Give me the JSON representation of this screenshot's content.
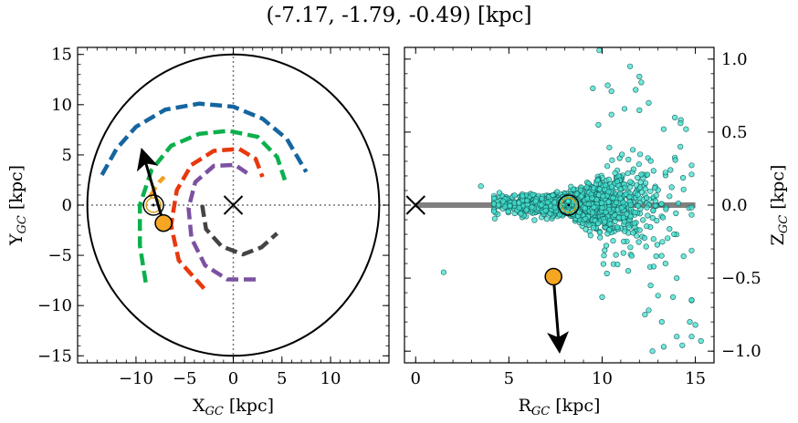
{
  "title": "(-7.17, -1.79, -0.49) [kpc]",
  "chart_data": [
    {
      "type": "scatter",
      "panel": "left",
      "xlabel": "X_GC [kpc]",
      "ylabel": "Y_GC [kpc]",
      "xlim": [
        -16,
        16
      ],
      "ylim": [
        -15.7,
        15.7
      ],
      "x_ticks": [
        -10,
        -5,
        0,
        5,
        10
      ],
      "y_ticks": [
        -15,
        -10,
        -5,
        0,
        5,
        10,
        15
      ],
      "x_tick_labels": [
        "−10",
        "−5",
        "0",
        "5",
        "10"
      ],
      "y_tick_labels": [
        "−15",
        "−10",
        "−5",
        "0",
        "5",
        "10",
        "15"
      ],
      "boundary_circle_radius": 15,
      "galactic_center": [
        0,
        0
      ],
      "sun": [
        -8.2,
        0
      ],
      "object": [
        -7.17,
        -1.79
      ],
      "velocity_arrow": {
        "from": [
          -7.17,
          -1.79
        ],
        "to": [
          -9.3,
          5.2
        ]
      },
      "spiral_arms": [
        {
          "color": "#1565a0",
          "points": [
            [
              -13.5,
              3
            ],
            [
              -12,
              5.6
            ],
            [
              -10,
              7.8
            ],
            [
              -7,
              9.5
            ],
            [
              -3.5,
              10.1
            ],
            [
              0,
              9.8
            ],
            [
              3,
              8.6
            ],
            [
              5.5,
              6.6
            ],
            [
              7.5,
              3.3
            ]
          ]
        },
        {
          "color": "#0bb04c",
          "points": [
            [
              -9,
              -7.7
            ],
            [
              -9.6,
              -4
            ],
            [
              -9.6,
              0
            ],
            [
              -8.4,
              3.5
            ],
            [
              -6.4,
              5.9
            ],
            [
              -3.5,
              7.1
            ],
            [
              -0.5,
              7.4
            ],
            [
              2.5,
              6.8
            ],
            [
              4.5,
              4.8
            ],
            [
              5.3,
              2.5
            ]
          ]
        },
        {
          "color": "#e8380d",
          "points": [
            [
              -3,
              -8.3
            ],
            [
              -5.6,
              -5.5
            ],
            [
              -6.4,
              -2
            ],
            [
              -5.8,
              1.5
            ],
            [
              -4.3,
              4
            ],
            [
              -2,
              5.4
            ],
            [
              0.6,
              5.6
            ],
            [
              2.3,
              4.6
            ],
            [
              3,
              2.8
            ]
          ]
        },
        {
          "color": "#7b52a1",
          "points": [
            [
              2.3,
              -7.4
            ],
            [
              -0.6,
              -7.4
            ],
            [
              -2.9,
              -6
            ],
            [
              -4.3,
              -3.3
            ],
            [
              -4.6,
              -0.3
            ],
            [
              -3.9,
              2.3
            ],
            [
              -2,
              3.9
            ],
            [
              0.2,
              4
            ],
            [
              1.7,
              3
            ]
          ]
        },
        {
          "color": "#444444",
          "points": [
            [
              -3.2,
              0
            ],
            [
              -2.8,
              -2.4
            ],
            [
              -1.2,
              -4.1
            ],
            [
              1,
              -4.9
            ],
            [
              2.9,
              -4.2
            ],
            [
              4.5,
              -2.8
            ]
          ]
        },
        {
          "color": "#f0a020",
          "points": [
            [
              -8.6,
              0.8
            ],
            [
              -8.1,
              1.6
            ],
            [
              -7.6,
              2.3
            ],
            [
              -7.1,
              2.8
            ]
          ]
        }
      ]
    },
    {
      "type": "scatter",
      "panel": "right",
      "xlabel": "R_GC [kpc]",
      "ylabel": "Z_GC [kpc]",
      "xlim": [
        -0.6,
        16
      ],
      "ylim": [
        -1.08,
        1.08
      ],
      "x_ticks": [
        0,
        5,
        10,
        15
      ],
      "y_ticks": [
        -1.0,
        -0.5,
        0.0,
        0.5,
        1.0
      ],
      "x_tick_labels": [
        "0",
        "5",
        "10",
        "15"
      ],
      "y_tick_labels": [
        "−1.0",
        "−0.5",
        "0.0",
        "0.5",
        "1.0"
      ],
      "y_axis_side": "right",
      "galactic_center": [
        0,
        0
      ],
      "sun": [
        8.2,
        0
      ],
      "object": [
        7.39,
        -0.49
      ],
      "velocity_arrow": {
        "from": [
          7.39,
          -0.49
        ],
        "to": [
          7.7,
          -0.98
        ]
      },
      "disk_line": {
        "x": [
          0,
          15
        ],
        "y": 0,
        "color": "#808080"
      },
      "point_color": "#40e0d0",
      "point_edge_color": "#1a5f5a",
      "n_points": 1700,
      "seed": 7,
      "outliers": [
        [
          9.85,
          1.06
        ],
        [
          11.5,
          0.95
        ],
        [
          12,
          0.88
        ],
        [
          10.3,
          0.82
        ],
        [
          12.1,
          0.84
        ],
        [
          11.8,
          0.79
        ],
        [
          9.5,
          0.8
        ],
        [
          10.5,
          0.78
        ],
        [
          12.5,
          0.7
        ],
        [
          12,
          0.65
        ],
        [
          11.2,
          0.66
        ],
        [
          13.9,
          0.6
        ],
        [
          9.8,
          0.55
        ],
        [
          10.5,
          0.62
        ],
        [
          14.5,
          0.52
        ],
        [
          14.2,
          0.4
        ],
        [
          13.3,
          0.52
        ],
        [
          3.5,
          0.13
        ],
        [
          1.5,
          -0.46
        ],
        [
          10,
          -0.63
        ],
        [
          12.6,
          -0.55
        ],
        [
          14,
          -0.5
        ],
        [
          13.8,
          -0.63
        ],
        [
          14.8,
          -0.65
        ],
        [
          12.5,
          -0.72
        ],
        [
          13.2,
          -0.8
        ],
        [
          14.7,
          -0.8
        ],
        [
          15,
          -0.82
        ],
        [
          12.3,
          -0.75
        ],
        [
          14,
          -0.9
        ],
        [
          15.3,
          -0.93
        ],
        [
          14.3,
          -0.96
        ],
        [
          12.7,
          -1.0
        ],
        [
          13.3,
          -0.97
        ],
        [
          14.8,
          -0.9
        ],
        [
          11.4,
          -0.45
        ],
        [
          12.9,
          -0.35
        ],
        [
          13.4,
          -0.4
        ],
        [
          13,
          -0.62
        ]
      ]
    }
  ]
}
